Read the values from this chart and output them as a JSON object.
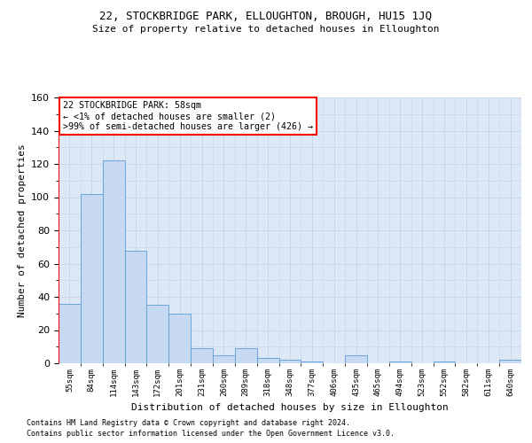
{
  "title1": "22, STOCKBRIDGE PARK, ELLOUGHTON, BROUGH, HU15 1JQ",
  "title2": "Size of property relative to detached houses in Elloughton",
  "xlabel": "Distribution of detached houses by size in Elloughton",
  "ylabel": "Number of detached properties",
  "bar_labels": [
    "55sqm",
    "84sqm",
    "114sqm",
    "143sqm",
    "172sqm",
    "201sqm",
    "231sqm",
    "260sqm",
    "289sqm",
    "318sqm",
    "348sqm",
    "377sqm",
    "406sqm",
    "435sqm",
    "465sqm",
    "494sqm",
    "523sqm",
    "552sqm",
    "582sqm",
    "611sqm",
    "640sqm"
  ],
  "bar_values": [
    36,
    102,
    122,
    68,
    35,
    30,
    9,
    5,
    9,
    3,
    2,
    1,
    0,
    5,
    0,
    1,
    0,
    1,
    0,
    0,
    2
  ],
  "bar_color": "#c6d9f0",
  "bar_edge_color": "#5b9bd5",
  "ax_bg_color": "#dce8f5",
  "annotation_text": "22 STOCKBRIDGE PARK: 58sqm\n← <1% of detached houses are smaller (2)\n>99% of semi-detached houses are larger (426) →",
  "annotation_box_color": "#ffffff",
  "annotation_border_color": "#ff0000",
  "vline_color": "#ff0000",
  "background_color": "#ffffff",
  "grid_color": "#c8d8ea",
  "ylim": [
    0,
    160
  ],
  "yticks": [
    0,
    20,
    40,
    60,
    80,
    100,
    120,
    140,
    160
  ],
  "footnote1": "Contains HM Land Registry data © Crown copyright and database right 2024.",
  "footnote2": "Contains public sector information licensed under the Open Government Licence v3.0."
}
